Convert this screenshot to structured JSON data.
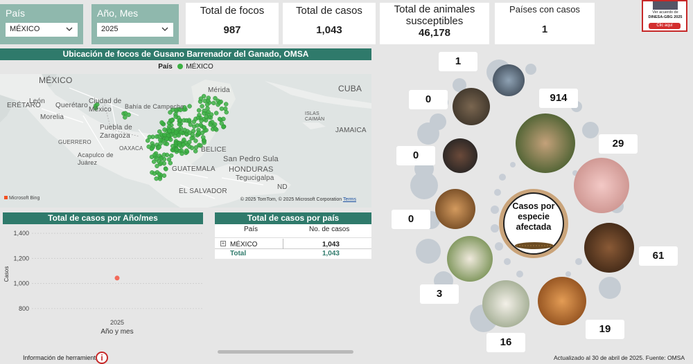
{
  "filters": {
    "country": {
      "label": "País",
      "value": "MÉXICO"
    },
    "period": {
      "label": "Año, Mes",
      "value": "2025"
    }
  },
  "kpis": {
    "foci": {
      "title": "Total de focos",
      "value": "987"
    },
    "cases": {
      "title": "Total de casos",
      "value": "1,043"
    },
    "animals": {
      "title_line1": "Total de animales",
      "title_line2": "susceptibles",
      "value": "46,178"
    },
    "countries": {
      "title": "Países con casos",
      "value": "1"
    }
  },
  "logo_card": {
    "line1": "Ver acuerdo de",
    "line2": "DINESA-GBG 2025",
    "button": "Clic aquí"
  },
  "map": {
    "title": "Ubicación de focos de Gusano Barrenador del Ganado, OMSA",
    "legend_label": "País",
    "legend_item": "MÉXICO",
    "legend_color": "#3cb043",
    "labels": {
      "mexico": "MÉXICO",
      "cuba": "CUBA",
      "merida": "Mérida",
      "leon": "León",
      "queretaro": "Querétaro",
      "ciudad_de_mexico": "Ciudad de México",
      "bahia_campeche": "Bahía de Campeche",
      "morelia": "Morelia",
      "puebla_zaragoza": "Puebla de Zaragoza",
      "guerrero": "GUERRERO",
      "oaxaca": "OAXACA",
      "acapulco": "Acapulco de Juárez",
      "belice": "BELICE",
      "jamaica": "JAMAICA",
      "islas_caiman": "ISLAS CAIMÁN",
      "honduras": "HONDURAS",
      "san_pedro_sula": "San Pedro Sula",
      "guatemala": "GUATEMALA",
      "tegucigalpa": "Tegucigalpa",
      "el_salvador": "EL SALVADOR",
      "queretaro_short": "ERÉTARO",
      "nd": "ND"
    },
    "bing": "Microsoft Bing",
    "attribution": "© 2025 TomTom, © 2025 Microsoft Corporation",
    "terms": "Terms"
  },
  "cases_chart_title": "Total de casos por Año/mes",
  "country_table": {
    "title": "Total de casos por país",
    "col_country": "País",
    "col_cases": "No. de casos",
    "rows": [
      {
        "country": "MÉXICO",
        "cases": "1,043"
      }
    ],
    "total_label": "Total",
    "total_value": "1,043"
  },
  "chart_data": {
    "type": "scatter",
    "title": "Total de casos por Año/mes",
    "xlabel": "Año y mes",
    "ylabel": "Casos",
    "categories": [
      "2025"
    ],
    "values": [
      1043
    ],
    "ylim": [
      700,
      1450
    ],
    "yticks": [
      800,
      1000,
      1200,
      1400
    ],
    "ytick_labels": [
      "800",
      "1,000",
      "1,200",
      "1,400"
    ],
    "point_color": "#f26a5a",
    "grid": true
  },
  "species": {
    "center_label": "Casos por especie afectada",
    "counts": {
      "bird": "1",
      "buffalo": "0",
      "cattle": "914",
      "poultry": "0",
      "pig": "29",
      "cat": "0",
      "horse": "61",
      "goat": "3",
      "sheep": "16",
      "dog": "19"
    }
  },
  "footer": {
    "tools": "Información de herramientas",
    "updated": "Actualizado al 30 de abril de 2025. Fuente: OMSA"
  }
}
